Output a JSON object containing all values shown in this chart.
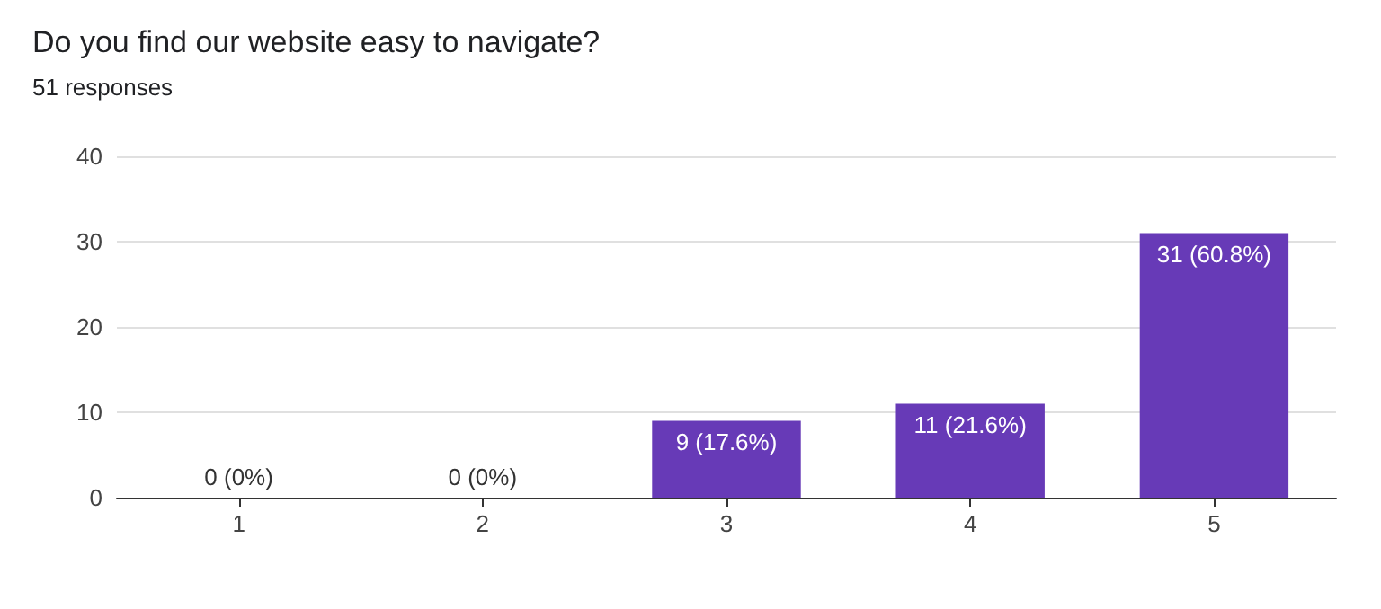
{
  "chart_data": {
    "type": "bar",
    "title": "Do you find our website easy to navigate?",
    "subtitle": "51 responses",
    "categories": [
      "1",
      "2",
      "3",
      "4",
      "5"
    ],
    "values": [
      0,
      0,
      9,
      11,
      31
    ],
    "value_labels": [
      "0 (0%)",
      "0 (0%)",
      "9 (17.6%)",
      "11 (21.6%)",
      "31 (60.8%)"
    ],
    "color": "#673ab7",
    "ylim": [
      0,
      40
    ],
    "yticks": [
      0,
      10,
      20,
      30,
      40
    ],
    "grid": "y"
  }
}
